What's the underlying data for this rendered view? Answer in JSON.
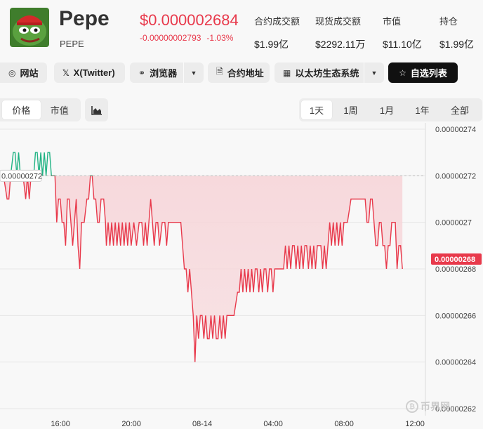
{
  "coin": {
    "name": "Pepe",
    "symbol": "PEPE",
    "price": "$0.000002684",
    "change_abs": "-0.00000002793",
    "change_pct": "-1.03%"
  },
  "stats": [
    {
      "label": "合约成交额",
      "value": "$1.99亿"
    },
    {
      "label": "现货成交额",
      "value": "$2292.11万"
    },
    {
      "label": "市值",
      "value": "$11.10亿"
    },
    {
      "label": "持仓",
      "value": "$1.99亿"
    }
  ],
  "links": {
    "website": "网站",
    "twitter": "X(Twitter)",
    "explorer": "浏览器",
    "contract": "合约地址",
    "ecosystem": "以太坊生态系统",
    "watchlist": "自选列表"
  },
  "toggles": {
    "price": "价格",
    "market_cap": "市值"
  },
  "ranges": [
    "1天",
    "1周",
    "1月",
    "1年",
    "全部"
  ],
  "active_range": "1天",
  "icons": {
    "logo": "pepe-frog-logo",
    "website": "globe-icon",
    "twitter": "x-logo-icon",
    "explorer": "explorer-icon",
    "contract": "document-icon",
    "ecosystem": "grid-icon",
    "watchlist": "star-icon",
    "chart_type": "area-chart-icon",
    "dropdown": "caret-down-icon"
  },
  "colors": {
    "down": "#e8394b",
    "up": "#21b384",
    "down_fill": "#f7d4d8",
    "accent_dark": "#111111"
  },
  "watermark": "币界网",
  "chart_data": {
    "type": "line",
    "title": "",
    "xlabel": "",
    "ylabel": "",
    "ylim": [
      2.62e-06,
      2.74e-06
    ],
    "reference_line": {
      "value": 2.72e-06,
      "label": "0.00000272"
    },
    "current_value": {
      "value": 2.68e-06,
      "label": "0.00000268"
    },
    "y_ticks": [
      {
        "value": 2.74e-06,
        "label": "0.00000274"
      },
      {
        "value": 2.72e-06,
        "label": "0.00000272"
      },
      {
        "value": 2.7e-06,
        "label": "0.0000027"
      },
      {
        "value": 2.68e-06,
        "label": "0.00000268"
      },
      {
        "value": 2.66e-06,
        "label": "0.00000266"
      },
      {
        "value": 2.64e-06,
        "label": "0.00000264"
      },
      {
        "value": 2.62e-06,
        "label": "0.00000262"
      }
    ],
    "x_ticks": [
      {
        "hours": 3.41,
        "label": "16:00"
      },
      {
        "hours": 7.41,
        "label": "20:00"
      },
      {
        "hours": 11.41,
        "label": "08-14"
      },
      {
        "hours": 15.41,
        "label": "04:00"
      },
      {
        "hours": 19.41,
        "label": "08:00"
      },
      {
        "hours": 23.41,
        "label": "12:00"
      }
    ],
    "x_range_hours": [
      0,
      24
    ],
    "points": [
      [
        0.0,
        2.72e-06
      ],
      [
        0.2,
        2.72e-06
      ],
      [
        0.4,
        2.71e-06
      ],
      [
        0.5,
        2.71e-06
      ],
      [
        0.6,
        2.72e-06
      ],
      [
        0.75,
        2.73e-06
      ],
      [
        0.85,
        2.73e-06
      ],
      [
        0.95,
        2.72e-06
      ],
      [
        1.05,
        2.73e-06
      ],
      [
        1.15,
        2.72e-06
      ],
      [
        1.3,
        2.72e-06
      ],
      [
        1.45,
        2.71e-06
      ],
      [
        1.55,
        2.72e-06
      ],
      [
        1.65,
        2.71e-06
      ],
      [
        1.75,
        2.72e-06
      ],
      [
        1.9,
        2.72e-06
      ],
      [
        2.0,
        2.73e-06
      ],
      [
        2.1,
        2.73e-06
      ],
      [
        2.2,
        2.72e-06
      ],
      [
        2.3,
        2.73e-06
      ],
      [
        2.4,
        2.72e-06
      ],
      [
        2.5,
        2.73e-06
      ],
      [
        2.6,
        2.72e-06
      ],
      [
        2.7,
        2.73e-06
      ],
      [
        2.8,
        2.73e-06
      ],
      [
        2.9,
        2.72e-06
      ],
      [
        3.0,
        2.72e-06
      ],
      [
        3.1,
        2.72e-06
      ],
      [
        3.2,
        2.7e-06
      ],
      [
        3.3,
        2.71e-06
      ],
      [
        3.4,
        2.71e-06
      ],
      [
        3.5,
        2.7e-06
      ],
      [
        3.6,
        2.7e-06
      ],
      [
        3.7,
        2.69e-06
      ],
      [
        3.8,
        2.71e-06
      ],
      [
        3.9,
        2.71e-06
      ],
      [
        4.0,
        2.7e-06
      ],
      [
        4.1,
        2.69e-06
      ],
      [
        4.2,
        2.7e-06
      ],
      [
        4.3,
        2.71e-06
      ],
      [
        4.4,
        2.69e-06
      ],
      [
        4.5,
        2.68e-06
      ],
      [
        4.6,
        2.7e-06
      ],
      [
        4.75,
        2.7e-06
      ],
      [
        4.9,
        2.71e-06
      ],
      [
        5.0,
        2.71e-06
      ],
      [
        5.1,
        2.72e-06
      ],
      [
        5.2,
        2.72e-06
      ],
      [
        5.3,
        2.71e-06
      ],
      [
        5.4,
        2.71e-06
      ],
      [
        5.5,
        2.7e-06
      ],
      [
        5.6,
        2.7e-06
      ],
      [
        5.7,
        2.71e-06
      ],
      [
        5.85,
        2.71e-06
      ],
      [
        5.95,
        2.7e-06
      ],
      [
        6.0,
        2.69e-06
      ],
      [
        6.1,
        2.7e-06
      ],
      [
        6.2,
        2.69e-06
      ],
      [
        6.3,
        2.7e-06
      ],
      [
        6.4,
        2.69e-06
      ],
      [
        6.5,
        2.7e-06
      ],
      [
        6.6,
        2.69e-06
      ],
      [
        6.7,
        2.7e-06
      ],
      [
        6.8,
        2.69e-06
      ],
      [
        6.9,
        2.7e-06
      ],
      [
        7.0,
        2.69e-06
      ],
      [
        7.1,
        2.7e-06
      ],
      [
        7.2,
        2.69e-06
      ],
      [
        7.3,
        2.7e-06
      ],
      [
        7.4,
        2.69e-06
      ],
      [
        7.55,
        2.7e-06
      ],
      [
        7.7,
        2.69e-06
      ],
      [
        7.85,
        2.7e-06
      ],
      [
        8.0,
        2.7e-06
      ],
      [
        8.1,
        2.69e-06
      ],
      [
        8.2,
        2.7e-06
      ],
      [
        8.3,
        2.69e-06
      ],
      [
        8.4,
        2.7e-06
      ],
      [
        8.5,
        2.71e-06
      ],
      [
        8.6,
        2.7e-06
      ],
      [
        8.7,
        2.69e-06
      ],
      [
        8.8,
        2.7e-06
      ],
      [
        8.9,
        2.7e-06
      ],
      [
        9.0,
        2.69e-06
      ],
      [
        9.15,
        2.7e-06
      ],
      [
        9.3,
        2.7e-06
      ],
      [
        9.4,
        2.69e-06
      ],
      [
        9.5,
        2.7e-06
      ],
      [
        9.6,
        2.7e-06
      ],
      [
        9.75,
        2.7e-06
      ],
      [
        9.9,
        2.7e-06
      ],
      [
        10.0,
        2.7e-06
      ],
      [
        10.2,
        2.7e-06
      ],
      [
        10.4,
        2.68e-06
      ],
      [
        10.5,
        2.68e-06
      ],
      [
        10.6,
        2.67e-06
      ],
      [
        10.7,
        2.68e-06
      ],
      [
        10.8,
        2.67e-06
      ],
      [
        10.9,
        2.66e-06
      ],
      [
        11.0,
        2.64e-06
      ],
      [
        11.1,
        2.66e-06
      ],
      [
        11.2,
        2.65e-06
      ],
      [
        11.3,
        2.66e-06
      ],
      [
        11.4,
        2.66e-06
      ],
      [
        11.5,
        2.65e-06
      ],
      [
        11.6,
        2.66e-06
      ],
      [
        11.7,
        2.65e-06
      ],
      [
        11.8,
        2.65e-06
      ],
      [
        11.9,
        2.66e-06
      ],
      [
        12.0,
        2.65e-06
      ],
      [
        12.1,
        2.66e-06
      ],
      [
        12.2,
        2.65e-06
      ],
      [
        12.3,
        2.65e-06
      ],
      [
        12.4,
        2.66e-06
      ],
      [
        12.5,
        2.65e-06
      ],
      [
        12.6,
        2.66e-06
      ],
      [
        12.7,
        2.65e-06
      ],
      [
        12.8,
        2.66e-06
      ],
      [
        12.9,
        2.66e-06
      ],
      [
        13.0,
        2.66e-06
      ],
      [
        13.2,
        2.66e-06
      ],
      [
        13.4,
        2.67e-06
      ],
      [
        13.5,
        2.67e-06
      ],
      [
        13.6,
        2.68e-06
      ],
      [
        13.7,
        2.67e-06
      ],
      [
        13.8,
        2.68e-06
      ],
      [
        13.9,
        2.67e-06
      ],
      [
        14.0,
        2.68e-06
      ],
      [
        14.1,
        2.67e-06
      ],
      [
        14.2,
        2.68e-06
      ],
      [
        14.3,
        2.67e-06
      ],
      [
        14.4,
        2.68e-06
      ],
      [
        14.5,
        2.68e-06
      ],
      [
        14.6,
        2.67e-06
      ],
      [
        14.7,
        2.68e-06
      ],
      [
        14.8,
        2.67e-06
      ],
      [
        14.9,
        2.68e-06
      ],
      [
        15.0,
        2.68e-06
      ],
      [
        15.1,
        2.67e-06
      ],
      [
        15.2,
        2.68e-06
      ],
      [
        15.3,
        2.68e-06
      ],
      [
        15.4,
        2.67e-06
      ],
      [
        15.5,
        2.68e-06
      ],
      [
        15.6,
        2.68e-06
      ],
      [
        15.7,
        2.68e-06
      ],
      [
        15.8,
        2.68e-06
      ],
      [
        16.0,
        2.68e-06
      ],
      [
        16.1,
        2.69e-06
      ],
      [
        16.2,
        2.68e-06
      ],
      [
        16.3,
        2.69e-06
      ],
      [
        16.4,
        2.68e-06
      ],
      [
        16.5,
        2.69e-06
      ],
      [
        16.6,
        2.69e-06
      ],
      [
        16.7,
        2.68e-06
      ],
      [
        16.8,
        2.69e-06
      ],
      [
        16.9,
        2.68e-06
      ],
      [
        17.0,
        2.69e-06
      ],
      [
        17.1,
        2.68e-06
      ],
      [
        17.2,
        2.69e-06
      ],
      [
        17.3,
        2.69e-06
      ],
      [
        17.4,
        2.68e-06
      ],
      [
        17.5,
        2.69e-06
      ],
      [
        17.6,
        2.68e-06
      ],
      [
        17.7,
        2.69e-06
      ],
      [
        17.8,
        2.68e-06
      ],
      [
        17.9,
        2.69e-06
      ],
      [
        18.0,
        2.69e-06
      ],
      [
        18.1,
        2.69e-06
      ],
      [
        18.2,
        2.68e-06
      ],
      [
        18.3,
        2.69e-06
      ],
      [
        18.4,
        2.68e-06
      ],
      [
        18.5,
        2.69e-06
      ],
      [
        18.6,
        2.7e-06
      ],
      [
        18.7,
        2.69e-06
      ],
      [
        18.8,
        2.7e-06
      ],
      [
        18.9,
        2.69e-06
      ],
      [
        19.0,
        2.7e-06
      ],
      [
        19.1,
        2.69e-06
      ],
      [
        19.2,
        2.7e-06
      ],
      [
        19.3,
        2.69e-06
      ],
      [
        19.4,
        2.7e-06
      ],
      [
        19.6,
        2.7e-06
      ],
      [
        19.8,
        2.71e-06
      ],
      [
        19.9,
        2.71e-06
      ],
      [
        20.0,
        2.71e-06
      ],
      [
        20.2,
        2.71e-06
      ],
      [
        20.4,
        2.71e-06
      ],
      [
        20.6,
        2.71e-06
      ],
      [
        20.7,
        2.7e-06
      ],
      [
        20.8,
        2.7e-06
      ],
      [
        20.9,
        2.71e-06
      ],
      [
        21.0,
        2.71e-06
      ],
      [
        21.1,
        2.7e-06
      ],
      [
        21.2,
        2.69e-06
      ],
      [
        21.3,
        2.69e-06
      ],
      [
        21.4,
        2.7e-06
      ],
      [
        21.5,
        2.7e-06
      ],
      [
        21.6,
        2.69e-06
      ],
      [
        21.7,
        2.69e-06
      ],
      [
        21.8,
        2.68e-06
      ],
      [
        21.9,
        2.69e-06
      ],
      [
        22.0,
        2.69e-06
      ],
      [
        22.1,
        2.7e-06
      ],
      [
        22.2,
        2.7e-06
      ],
      [
        22.3,
        2.7e-06
      ],
      [
        22.4,
        2.68e-06
      ],
      [
        22.5,
        2.69e-06
      ],
      [
        22.6,
        2.69e-06
      ],
      [
        22.7,
        2.68e-06
      ]
    ]
  }
}
